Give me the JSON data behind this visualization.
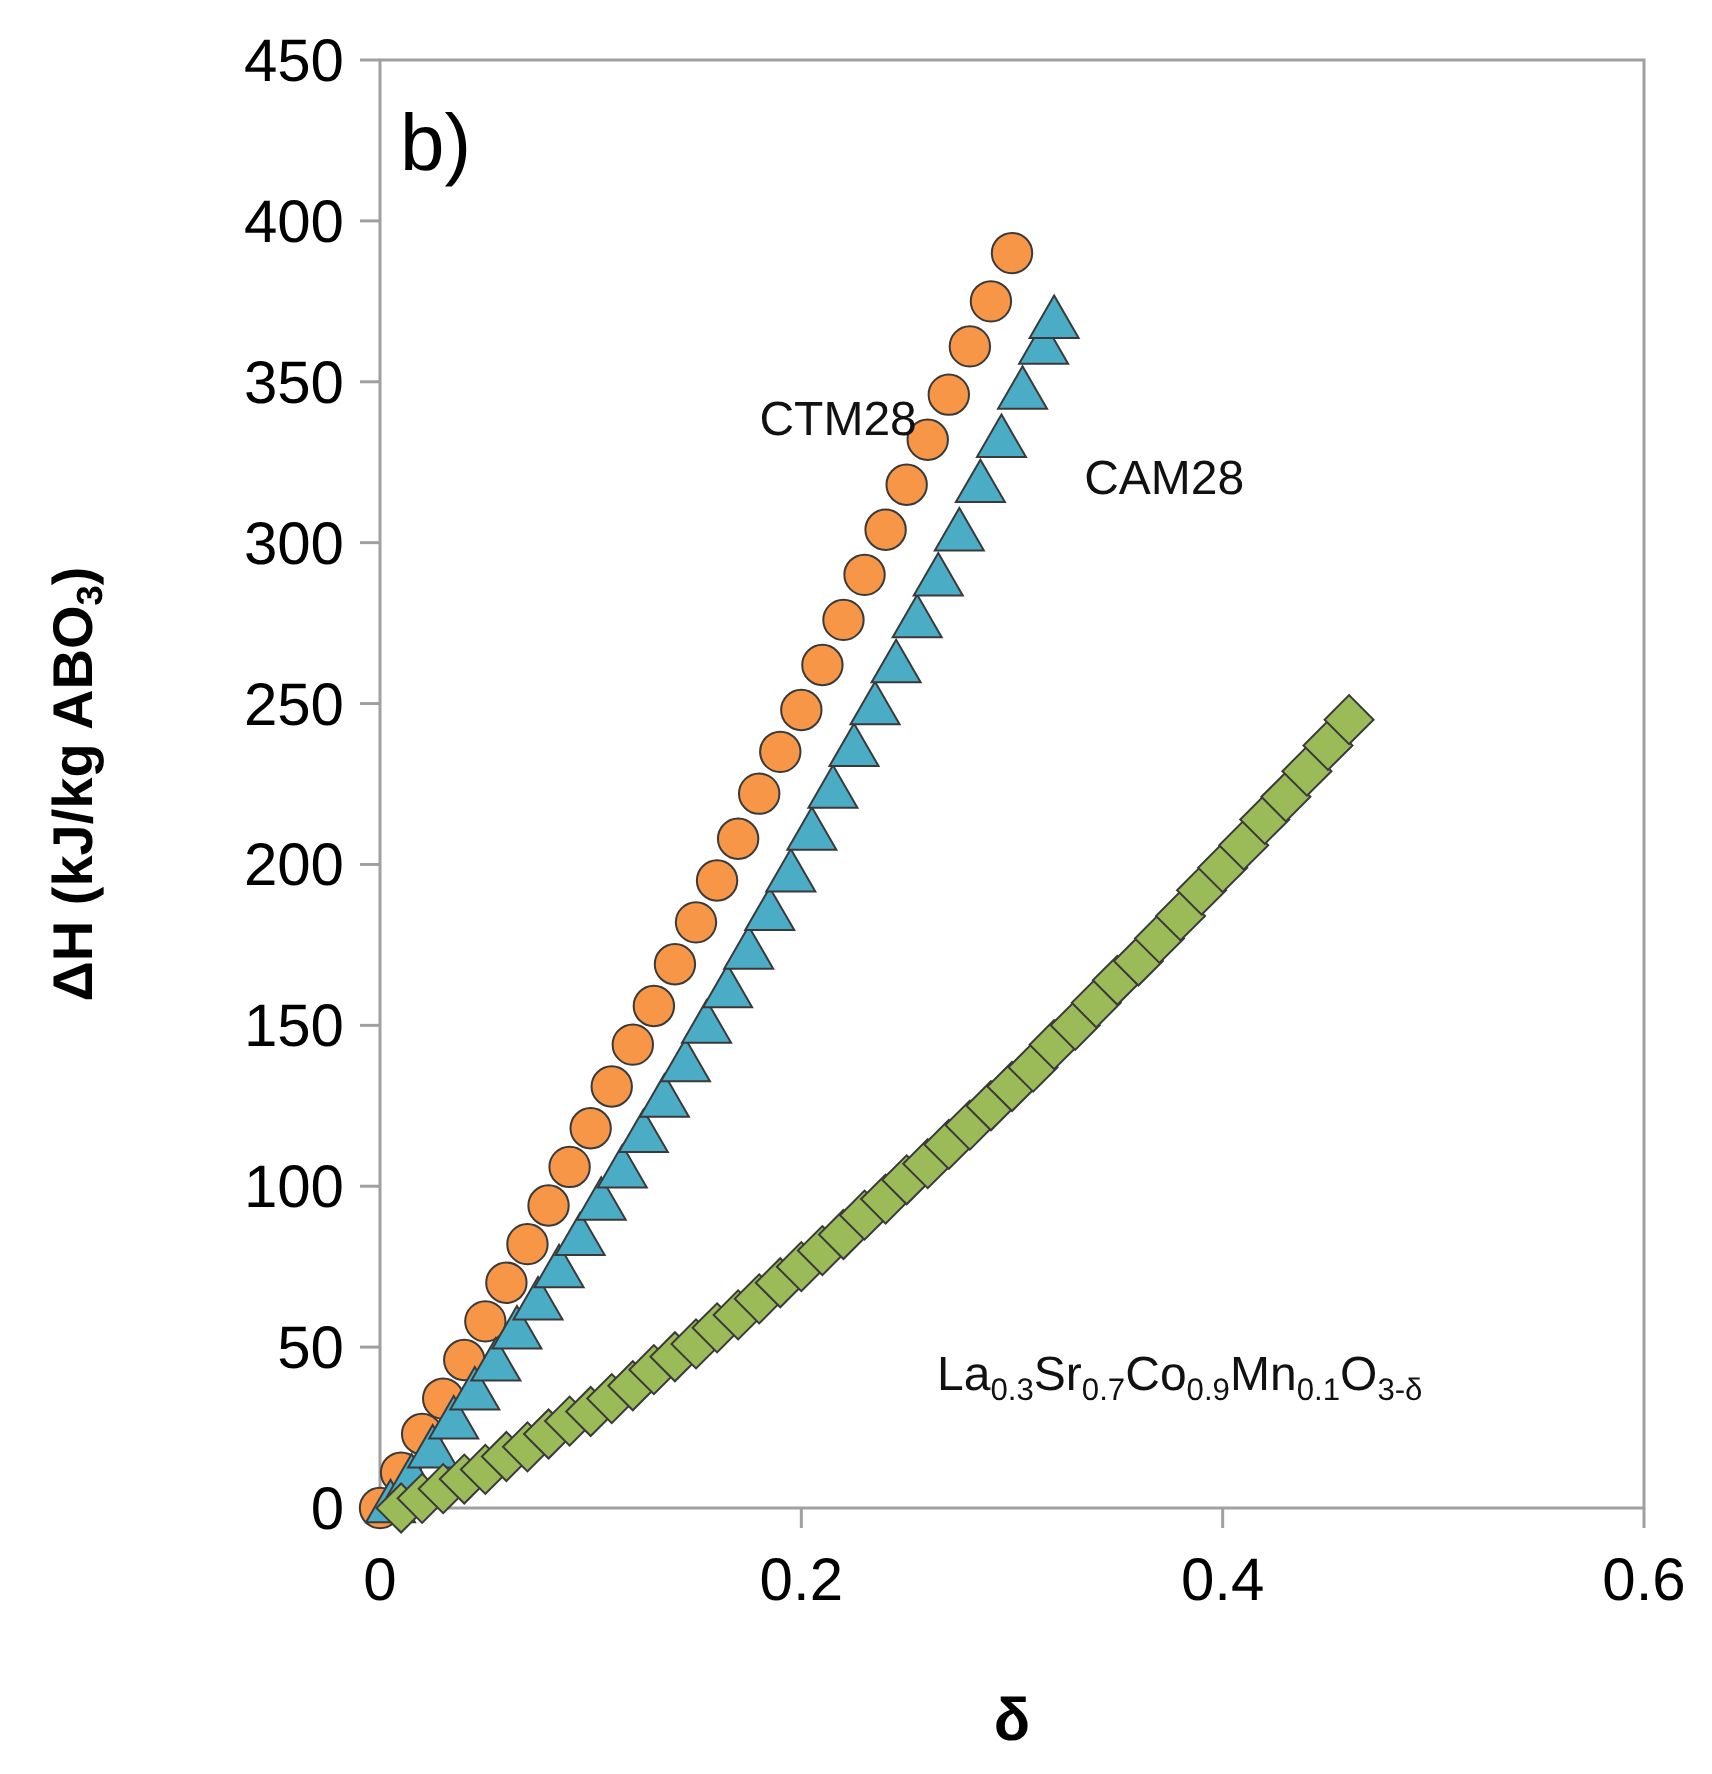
{
  "chart_data": {
    "type": "scatter",
    "xlabel": "δ",
    "ylabel": "ΔH (kJ/kg ABO$_{3}$)",
    "annotations": [
      "b)"
    ],
    "xlim": [
      0,
      0.6
    ],
    "xticks": [
      {
        "value": 0,
        "label": "0"
      },
      0.2,
      0.4,
      0.6
    ],
    "ylim": [
      0,
      450
    ],
    "yticks": [
      0,
      50,
      100,
      150,
      200,
      250,
      300,
      350,
      400,
      450
    ],
    "grid": false,
    "series": [
      {
        "name": "CTM28",
        "color": "#f79646",
        "marker": "circle",
        "x": [
          0,
          0.01,
          0.02,
          0.03,
          0.04,
          0.05,
          0.06,
          0.07,
          0.08,
          0.09,
          0.1,
          0.11,
          0.12,
          0.13,
          0.14,
          0.15,
          0.16,
          0.17,
          0.18,
          0.19,
          0.2,
          0.21,
          0.22,
          0.23,
          0.24,
          0.25,
          0.26,
          0.27,
          0.28,
          0.29,
          0.3
        ],
        "values": [
          0,
          11,
          23,
          34,
          46,
          58,
          70,
          82,
          94,
          106,
          118,
          131,
          144,
          156,
          169,
          182,
          195,
          208,
          222,
          235,
          248,
          262,
          276,
          290,
          304,
          318,
          332,
          346,
          361,
          375,
          390
        ]
      },
      {
        "name": "CAM28",
        "color": "#4bacc6",
        "marker": "triangle",
        "x": [
          0.005,
          0.015,
          0.025,
          0.035,
          0.045,
          0.055,
          0.065,
          0.075,
          0.085,
          0.095,
          0.105,
          0.115,
          0.125,
          0.135,
          0.145,
          0.155,
          0.165,
          0.175,
          0.185,
          0.195,
          0.205,
          0.215,
          0.225,
          0.235,
          0.245,
          0.255,
          0.265,
          0.275,
          0.285,
          0.295,
          0.305,
          0.315,
          0.32
        ],
        "values": [
          0,
          8,
          17,
          26,
          35,
          44,
          54,
          63,
          73,
          83,
          94,
          104,
          115,
          126,
          137,
          149,
          160,
          172,
          184,
          196,
          209,
          222,
          235,
          248,
          261,
          275,
          288,
          302,
          317,
          331,
          346,
          360,
          368
        ]
      },
      {
        "name": "La$_{0.3}$Sr$_{0.7}$Co$_{0.9}$Mn$_{0.1}$O$_{3-δ}$",
        "color": "#9bbb59",
        "marker": "diamond",
        "x": [
          0.01,
          0.02,
          0.03,
          0.04,
          0.05,
          0.06,
          0.07,
          0.08,
          0.09,
          0.1,
          0.11,
          0.12,
          0.13,
          0.14,
          0.15,
          0.16,
          0.17,
          0.18,
          0.19,
          0.2,
          0.21,
          0.22,
          0.23,
          0.24,
          0.25,
          0.26,
          0.27,
          0.28,
          0.29,
          0.3,
          0.31,
          0.32,
          0.33,
          0.34,
          0.35,
          0.36,
          0.37,
          0.38,
          0.39,
          0.4,
          0.41,
          0.42,
          0.43,
          0.44,
          0.45,
          0.46
        ],
        "values": [
          0,
          3,
          6,
          9,
          12,
          16,
          19,
          23,
          27,
          30,
          34,
          38,
          43,
          47,
          51,
          56,
          60,
          65,
          70,
          75,
          80,
          85,
          91,
          96,
          102,
          107,
          113,
          119,
          125,
          131,
          137,
          144,
          150,
          157,
          164,
          170,
          177,
          184,
          192,
          199,
          206,
          214,
          221,
          229,
          237,
          245
        ]
      }
    ]
  }
}
